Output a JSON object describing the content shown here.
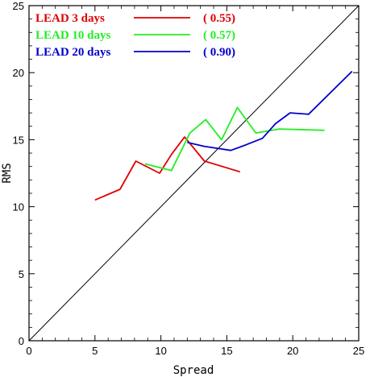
{
  "chart_data": {
    "type": "line",
    "title": "",
    "xlabel": "Spread",
    "ylabel": "RMS",
    "xlim": [
      0,
      25
    ],
    "ylim": [
      0,
      25
    ],
    "xticks": [
      0,
      5,
      10,
      15,
      20,
      25
    ],
    "yticks": [
      0,
      5,
      10,
      15,
      20,
      25
    ],
    "grid": false,
    "legend_position": "top-left",
    "diagonal": {
      "x": [
        0,
        25
      ],
      "y": [
        0,
        25
      ],
      "color": "#000000"
    },
    "series": [
      {
        "name": "LEAD  3 days",
        "score": "( 0.55)",
        "color": "#e00000",
        "x": [
          5.0,
          6.9,
          8.1,
          9.9,
          10.8,
          11.8,
          13.3,
          16.0
        ],
        "y": [
          10.5,
          11.3,
          13.4,
          12.5,
          13.9,
          15.2,
          13.4,
          12.6
        ]
      },
      {
        "name": "LEAD 10 days",
        "score": "( 0.57)",
        "color": "#22ee22",
        "x": [
          8.8,
          10.8,
          12.2,
          13.4,
          14.6,
          15.8,
          17.2,
          19.0,
          22.4
        ],
        "y": [
          13.2,
          12.7,
          15.5,
          16.5,
          15.0,
          17.4,
          15.5,
          15.8,
          15.7
        ]
      },
      {
        "name": "LEAD 20 days",
        "score": "( 0.90)",
        "color": "#0000cc",
        "x": [
          12.0,
          13.3,
          15.3,
          16.4,
          17.7,
          18.7,
          19.8,
          21.2,
          24.5
        ],
        "y": [
          14.8,
          14.5,
          14.2,
          14.6,
          15.1,
          16.2,
          17.0,
          16.9,
          20.1
        ]
      }
    ]
  }
}
